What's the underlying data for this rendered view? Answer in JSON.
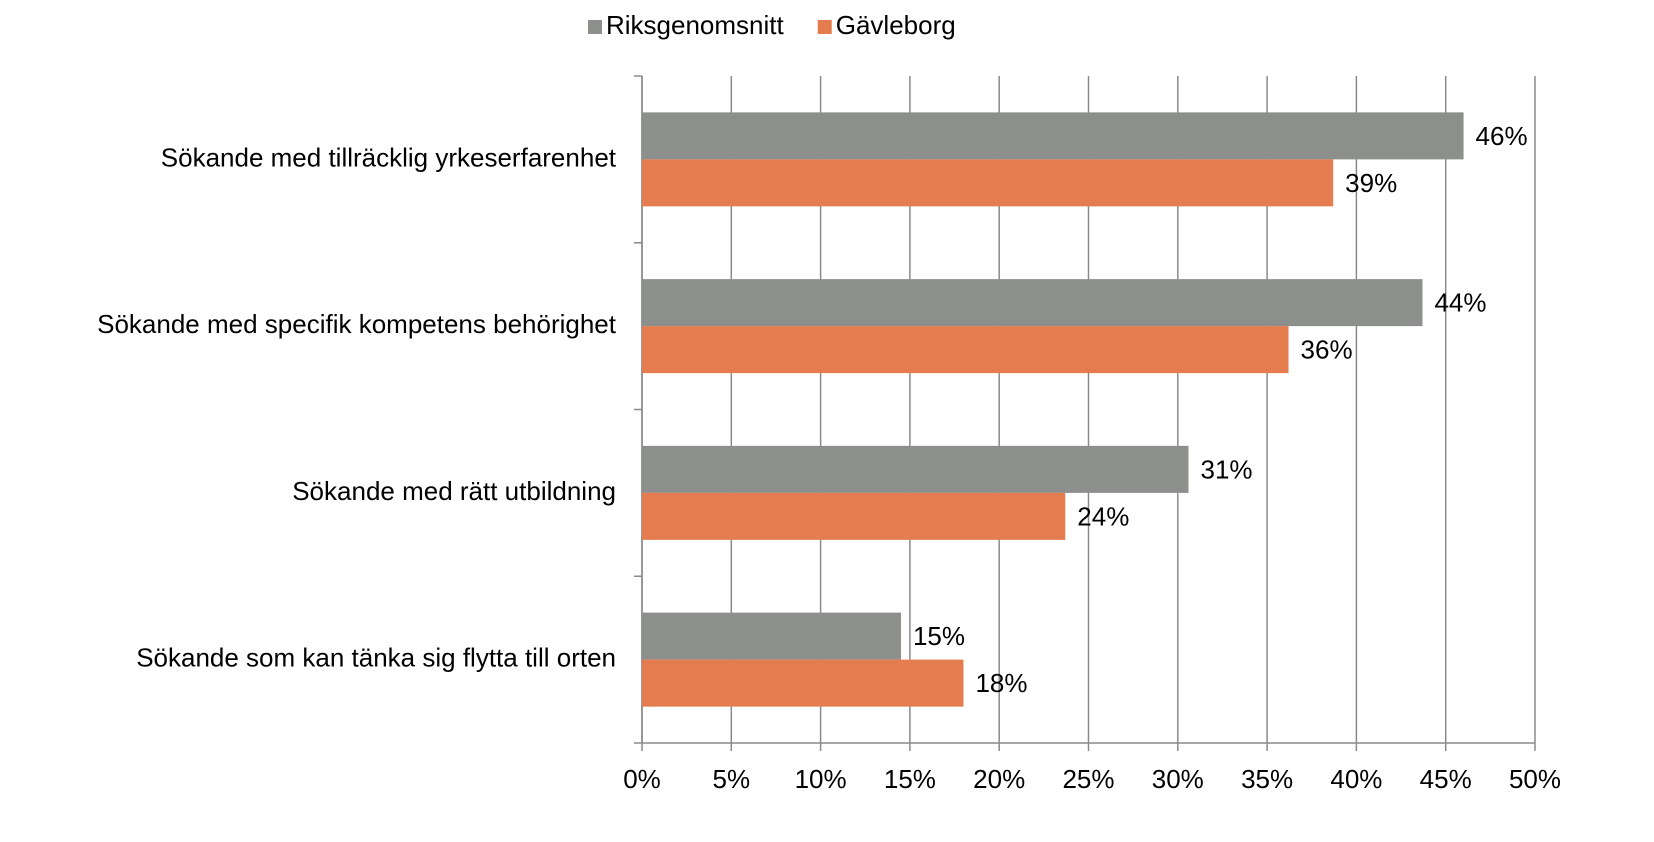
{
  "chart_data": {
    "type": "barh",
    "categories": [
      "Sökande med tillräcklig yrkeserfarenhet",
      "Sökande med specifik kompetens behörighet",
      "Sökande med rätt utbildning",
      "Sökande som kan tänka sig flytta till orten"
    ],
    "series": [
      {
        "name": "Riksgenomsnitt",
        "color": "#8c8f8c",
        "values": [
          46.0,
          43.7,
          30.6,
          14.5
        ],
        "value_labels": [
          "46%",
          "44%",
          "31%",
          "15%"
        ]
      },
      {
        "name": "Gävleborg",
        "color": "#e57c4f",
        "values": [
          38.7,
          36.2,
          23.7,
          18.0
        ],
        "value_labels": [
          "39%",
          "36%",
          "24%",
          "18%"
        ]
      }
    ],
    "xlim": [
      0,
      50
    ],
    "xticks": [
      {
        "value": 0,
        "label": "0%"
      },
      {
        "value": 5,
        "label": "5%"
      },
      {
        "value": 10,
        "label": "10%"
      },
      {
        "value": 15,
        "label": "15%"
      },
      {
        "value": 20,
        "label": "20%"
      },
      {
        "value": 25,
        "label": "25%"
      },
      {
        "value": 30,
        "label": "30%"
      },
      {
        "value": 35,
        "label": "35%"
      },
      {
        "value": 40,
        "label": "40%"
      },
      {
        "value": 45,
        "label": "45%"
      },
      {
        "value": 50,
        "label": "50%"
      }
    ],
    "grid": true,
    "legend": "top"
  }
}
